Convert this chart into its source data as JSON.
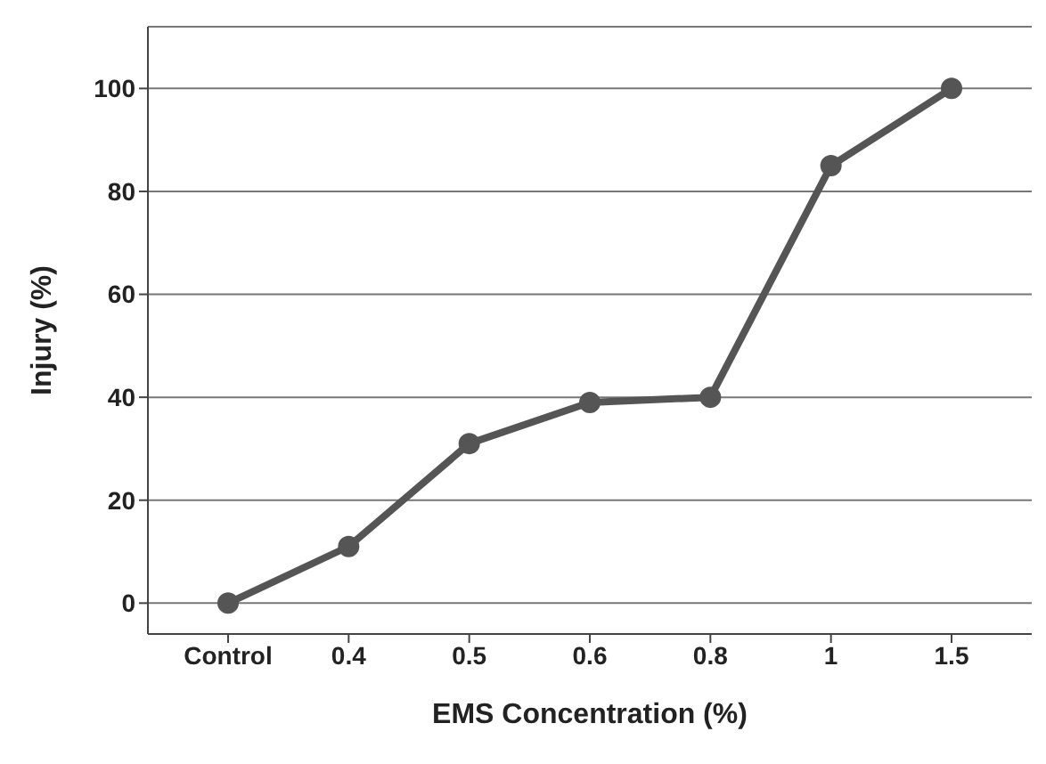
{
  "chart_data": {
    "type": "line",
    "xlabel": "EMS Concentration (%)",
    "ylabel": "Injury (%)",
    "categories": [
      "Control",
      "0.4",
      "0.5",
      "0.6",
      "0.8",
      "1",
      "1.5"
    ],
    "series": [
      {
        "color": "#555555",
        "values": [
          0,
          11,
          31,
          39,
          40,
          85,
          100
        ]
      }
    ],
    "ylim": [
      -6,
      112
    ],
    "yticks": [
      0,
      20,
      40,
      60,
      80,
      100
    ],
    "grid": "y",
    "marker": "circle",
    "line_style": "solid",
    "legend": false
  }
}
